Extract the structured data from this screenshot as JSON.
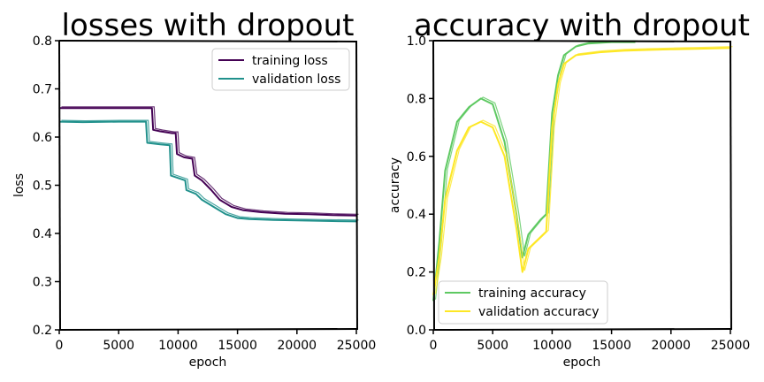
{
  "chart_data": [
    {
      "type": "line",
      "title": "losses with dropout",
      "xlabel": "epoch",
      "ylabel": "loss",
      "xlim": [
        0,
        25000
      ],
      "ylim": [
        0.2,
        0.8
      ],
      "xticks": [
        0,
        5000,
        10000,
        15000,
        20000,
        25000
      ],
      "yticks": [
        0.2,
        0.3,
        0.4,
        0.5,
        0.6,
        0.7,
        0.8
      ],
      "legend_position": "top-right",
      "series": [
        {
          "name": "training loss",
          "color": "#440154",
          "points": [
            [
              0,
              0.66
            ],
            [
              2000,
              0.66
            ],
            [
              5000,
              0.66
            ],
            [
              7800,
              0.66
            ],
            [
              7900,
              0.615
            ],
            [
              8500,
              0.612
            ],
            [
              9500,
              0.608
            ],
            [
              9800,
              0.608
            ],
            [
              9900,
              0.565
            ],
            [
              10500,
              0.558
            ],
            [
              11200,
              0.555
            ],
            [
              11400,
              0.52
            ],
            [
              12000,
              0.51
            ],
            [
              12800,
              0.49
            ],
            [
              13500,
              0.47
            ],
            [
              14500,
              0.455
            ],
            [
              15500,
              0.448
            ],
            [
              17000,
              0.444
            ],
            [
              19000,
              0.441
            ],
            [
              21000,
              0.44
            ],
            [
              23000,
              0.438
            ],
            [
              25000,
              0.437
            ]
          ]
        },
        {
          "name": "validation loss",
          "color": "#21918c",
          "points": [
            [
              0,
              0.632
            ],
            [
              2000,
              0.631
            ],
            [
              5000,
              0.632
            ],
            [
              7300,
              0.632
            ],
            [
              7400,
              0.588
            ],
            [
              8500,
              0.585
            ],
            [
              9300,
              0.583
            ],
            [
              9400,
              0.52
            ],
            [
              10000,
              0.515
            ],
            [
              10600,
              0.51
            ],
            [
              10700,
              0.49
            ],
            [
              11500,
              0.482
            ],
            [
              12000,
              0.47
            ],
            [
              13000,
              0.455
            ],
            [
              14000,
              0.44
            ],
            [
              15000,
              0.432
            ],
            [
              16000,
              0.43
            ],
            [
              18000,
              0.428
            ],
            [
              20000,
              0.427
            ],
            [
              22000,
              0.426
            ],
            [
              25000,
              0.425
            ]
          ]
        }
      ]
    },
    {
      "type": "line",
      "title": "accuracy with dropout",
      "xlabel": "epoch",
      "ylabel": "accuracy",
      "xlim": [
        0,
        25000
      ],
      "ylim": [
        0.0,
        1.0
      ],
      "xticks": [
        0,
        5000,
        10000,
        15000,
        20000,
        25000
      ],
      "yticks": [
        0.0,
        0.2,
        0.4,
        0.6,
        0.8,
        1.0
      ],
      "legend_position": "bottom-left",
      "series": [
        {
          "name": "training accuracy",
          "color": "#5ec962",
          "points": [
            [
              0,
              0.1
            ],
            [
              500,
              0.3
            ],
            [
              1000,
              0.55
            ],
            [
              2000,
              0.72
            ],
            [
              3000,
              0.77
            ],
            [
              4000,
              0.8
            ],
            [
              5000,
              0.78
            ],
            [
              6000,
              0.65
            ],
            [
              7000,
              0.4
            ],
            [
              7500,
              0.25
            ],
            [
              8000,
              0.33
            ],
            [
              9000,
              0.38
            ],
            [
              9500,
              0.4
            ],
            [
              10000,
              0.75
            ],
            [
              10500,
              0.88
            ],
            [
              11000,
              0.95
            ],
            [
              12000,
              0.98
            ],
            [
              13000,
              0.99
            ],
            [
              15000,
              0.995
            ],
            [
              17000,
              0.995
            ]
          ]
        },
        {
          "name": "validation accuracy",
          "color": "#fde725",
          "points": [
            [
              0,
              0.12
            ],
            [
              500,
              0.25
            ],
            [
              1000,
              0.45
            ],
            [
              2000,
              0.62
            ],
            [
              3000,
              0.7
            ],
            [
              4000,
              0.72
            ],
            [
              5000,
              0.7
            ],
            [
              6000,
              0.6
            ],
            [
              7000,
              0.35
            ],
            [
              7500,
              0.2
            ],
            [
              8000,
              0.28
            ],
            [
              9000,
              0.32
            ],
            [
              9500,
              0.34
            ],
            [
              10000,
              0.7
            ],
            [
              10500,
              0.85
            ],
            [
              11000,
              0.92
            ],
            [
              12000,
              0.95
            ],
            [
              14000,
              0.96
            ],
            [
              16000,
              0.965
            ],
            [
              18000,
              0.968
            ],
            [
              20000,
              0.97
            ],
            [
              22000,
              0.972
            ],
            [
              25000,
              0.975
            ]
          ]
        }
      ]
    }
  ]
}
